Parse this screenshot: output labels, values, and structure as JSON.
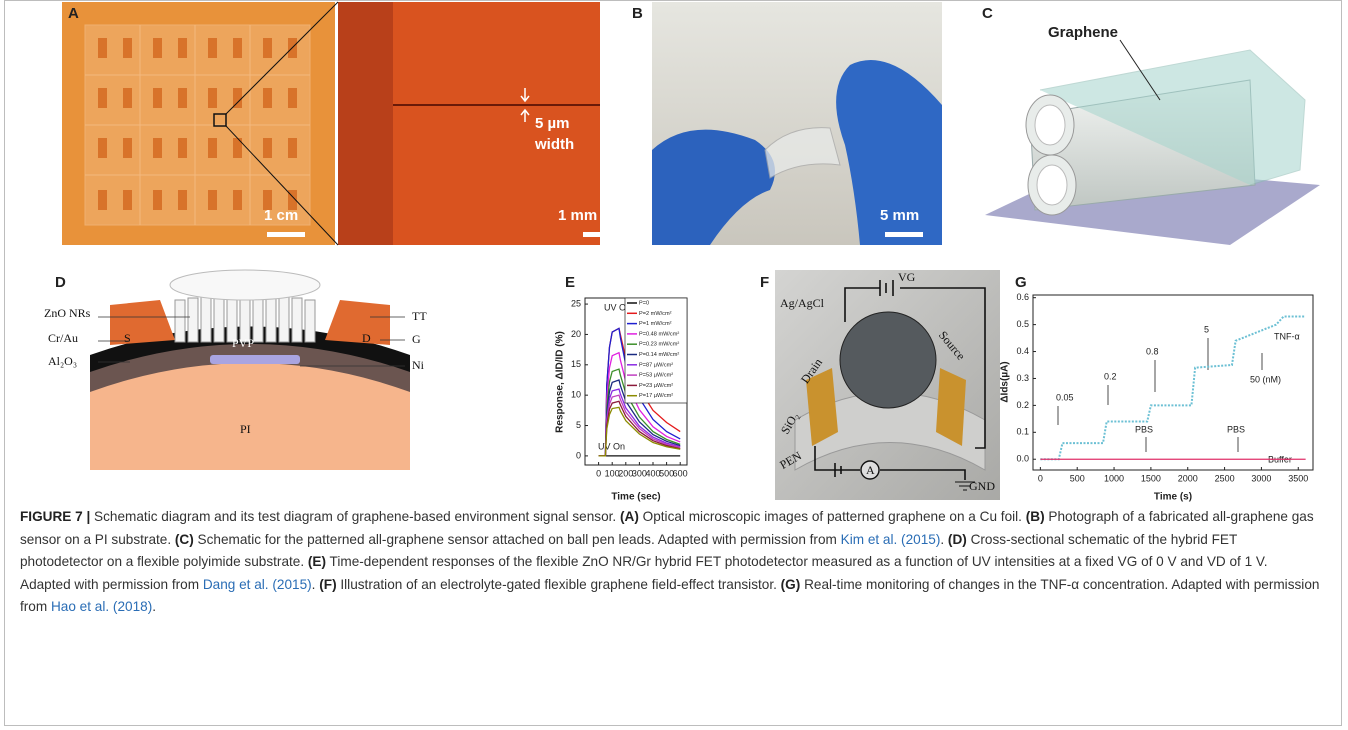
{
  "panels": {
    "A": {
      "label": "A",
      "scale_left": "1 cm",
      "scale_right": "1 mm",
      "width_note": [
        "5 µm",
        "width"
      ]
    },
    "B": {
      "label": "B",
      "scale": "5 mm"
    },
    "C": {
      "label": "C",
      "material": "Graphene"
    },
    "D": {
      "label": "D",
      "layers": [
        "ZnO NRs",
        "Cr/Au",
        "Al₂O₃",
        "S",
        "D",
        "PVP",
        "TT",
        "G",
        "Ni",
        "PI"
      ]
    },
    "F": {
      "label": "F",
      "labels": [
        "VG",
        "Ag/AgCl",
        "Drain",
        "Source",
        "SiO₂",
        "PEN",
        "A",
        "GND"
      ]
    }
  },
  "chart_data": [
    {
      "type": "line",
      "panel": "E",
      "xlabel": "Time (sec)",
      "ylabel": "Response, ΔID/ID (%)",
      "x": [
        0,
        50,
        60,
        80,
        100,
        150,
        160,
        200,
        300,
        400,
        500,
        600
      ],
      "xlim": [
        -100,
        650
      ],
      "xticks": [
        0,
        100,
        200,
        300,
        400,
        500,
        600
      ],
      "ylim": [
        -1.5,
        26
      ],
      "yticks": [
        0,
        5,
        10,
        15,
        20,
        25
      ],
      "legend": "upper right",
      "annotations": [
        "UV Off",
        "UV On"
      ],
      "series": [
        {
          "name": "P=0",
          "color": "#111111",
          "values": [
            0,
            0,
            0,
            0,
            0,
            0,
            0,
            0,
            0,
            0,
            0,
            0
          ]
        },
        {
          "name": "P=2 mW/cm²",
          "color": "#e41a1c",
          "values": [
            0,
            0,
            11.6,
            17.9,
            20.4,
            21,
            20,
            16,
            11,
            7.5,
            5.5,
            4
          ]
        },
        {
          "name": "P=1 mW/cm²",
          "color": "#1f1fd0",
          "values": [
            0,
            0,
            11.6,
            17.9,
            20.4,
            21,
            19.5,
            15,
            9.5,
            6,
            4,
            2.8
          ]
        },
        {
          "name": "P=0.48 mW/cm²",
          "color": "#e020e0",
          "values": [
            0,
            0,
            9.4,
            14.5,
            16.5,
            17,
            15.8,
            12.2,
            7.6,
            4.8,
            3.2,
            2.3
          ]
        },
        {
          "name": "P=0.23 mW/cm²",
          "color": "#3c8f2a",
          "values": [
            0,
            0,
            7.9,
            12.2,
            13.9,
            14.3,
            13.3,
            10.3,
            6.4,
            4,
            2.7,
            1.9
          ]
        },
        {
          "name": "P=0.14 mW/cm²",
          "color": "#1a2a80",
          "values": [
            0,
            0,
            6.9,
            10.6,
            12.1,
            12.5,
            11.6,
            9,
            5.6,
            3.5,
            2.4,
            1.7
          ]
        },
        {
          "name": "P=87 µW/cm²",
          "color": "#8a2be2",
          "values": [
            0,
            0,
            6.1,
            9.4,
            10.7,
            11,
            10.2,
            7.9,
            4.9,
            3.1,
            2.1,
            1.5
          ]
        },
        {
          "name": "P=53 µW/cm²",
          "color": "#c040c0",
          "values": [
            0,
            0,
            5.5,
            8.5,
            9.7,
            10,
            9.3,
            7.2,
            4.5,
            2.8,
            1.9,
            1.4
          ]
        },
        {
          "name": "P=23 µW/cm²",
          "color": "#8b1a3a",
          "values": [
            0,
            0,
            5,
            7.7,
            8.7,
            9,
            8.4,
            6.5,
            4,
            2.5,
            1.7,
            1.2
          ]
        },
        {
          "name": "P=17 µW/cm²",
          "color": "#8b8b00",
          "values": [
            0,
            0,
            4.4,
            6.8,
            7.8,
            8,
            7.4,
            5.8,
            3.6,
            2.2,
            1.5,
            1.1
          ]
        }
      ]
    },
    {
      "type": "line",
      "panel": "G",
      "xlabel": "Time (s)",
      "ylabel": "ΔIds(µA)",
      "x": [
        0,
        250,
        300,
        850,
        900,
        1450,
        1500,
        2050,
        2100,
        2600,
        2650,
        3200,
        3300,
        3600
      ],
      "xlim": [
        -100,
        3700
      ],
      "xticks": [
        0,
        500,
        1000,
        1500,
        2000,
        2500,
        3000,
        3500
      ],
      "ylim": [
        -0.04,
        0.61
      ],
      "yticks": [
        {
          "value": 0,
          "label": "0.0"
        },
        0.1,
        0.2,
        0.3,
        0.4,
        0.5,
        0.6
      ],
      "legend": "none",
      "annotations": [
        "0.05",
        "0.2",
        "0.8",
        "5",
        "50 (nM)",
        "PBS",
        "PBS"
      ],
      "series": [
        {
          "name": "TNF-α",
          "color": "#6cc0d4",
          "dashed": true,
          "values": [
            0,
            0,
            0.06,
            0.06,
            0.14,
            0.14,
            0.2,
            0.2,
            0.34,
            0.35,
            0.44,
            0.5,
            0.53,
            0.53
          ]
        },
        {
          "name": "Buffer",
          "color": "#e0306a",
          "dashed": false,
          "values": [
            0,
            0,
            0,
            0,
            0,
            0,
            0,
            0,
            0,
            0,
            0,
            0,
            0,
            0
          ]
        }
      ]
    }
  ],
  "caption": {
    "segments": [
      {
        "text": "FIGURE 7 |",
        "style": "bold"
      },
      {
        "text": " Schematic diagram and its test diagram of graphene-based environment signal sensor. ",
        "style": "plain"
      },
      {
        "text": "(A)",
        "style": "bold"
      },
      {
        "text": " Optical microscopic images of patterned graphene on a Cu foil. ",
        "style": "plain"
      },
      {
        "text": "(B)",
        "style": "bold"
      },
      {
        "text": " Photograph of a fabricated all-graphene gas sensor on a PI substrate. ",
        "style": "plain"
      },
      {
        "text": "(C)",
        "style": "bold"
      },
      {
        "text": " Schematic for the patterned all-graphene sensor attached on ball pen leads. Adapted with permission from ",
        "style": "plain"
      },
      {
        "text": "Kim et al. (2015)",
        "style": "link"
      },
      {
        "text": ". ",
        "style": "plain"
      },
      {
        "text": "(D)",
        "style": "bold"
      },
      {
        "text": " Cross-sectional schematic of the hybrid FET photodetector on a flexible polyimide substrate. ",
        "style": "plain"
      },
      {
        "text": "(E)",
        "style": "bold"
      },
      {
        "text": " Time-dependent responses of the flexible ZnO NR/Gr hybrid FET photodetector measured as a function of UV intensities at a fixed VG of 0 V and VD of 1 V. Adapted with permission from ",
        "style": "plain"
      },
      {
        "text": "Dang et al. (2015)",
        "style": "link"
      },
      {
        "text": ". ",
        "style": "plain"
      },
      {
        "text": "(F)",
        "style": "bold"
      },
      {
        "text": " Illustration of an electrolyte-gated flexible graphene field-effect transistor. ",
        "style": "plain"
      },
      {
        "text": "(G)",
        "style": "bold"
      },
      {
        "text": " Real-time monitoring of changes in the TNF-α concentration. Adapted with permission from ",
        "style": "plain"
      },
      {
        "text": "Hao et al. (2018)",
        "style": "link"
      },
      {
        "text": ".",
        "style": "plain"
      }
    ]
  }
}
